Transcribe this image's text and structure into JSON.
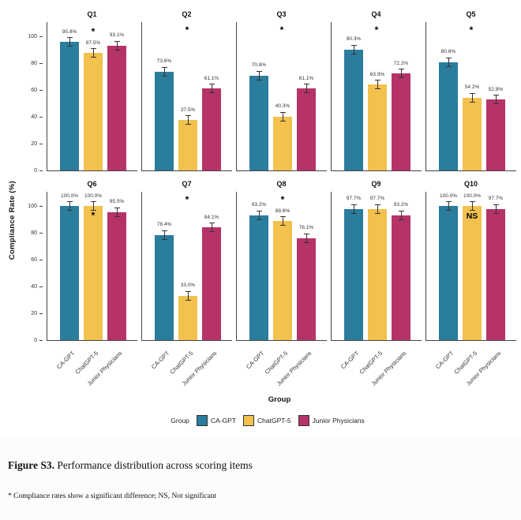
{
  "figure": {
    "caption_bold": "Figure S3.",
    "caption_rest": " Performance distribution across scoring items",
    "footnote": "* Compliance rates show a significant difference; NS, Not significant"
  },
  "chart_data": {
    "type": "bar",
    "title": "",
    "ylabel": "Compliance Rate (%)",
    "xlabel": "Group",
    "ylim": [
      0,
      100
    ],
    "yticks": [
      0,
      20,
      40,
      60,
      80,
      100
    ],
    "grid": false,
    "error_bars": true,
    "legend_title": "Group",
    "legend_position": "bottom",
    "categories": [
      "CA-GPT",
      "ChatGPT-5",
      "Junior Physicians"
    ],
    "series_colors": [
      "#2a7d9c",
      "#f2c14e",
      "#b63368"
    ],
    "facets": [
      {
        "label": "Q1",
        "values": [
          95.8,
          87.5,
          93.1
        ],
        "marker": "*",
        "marker_pos": 1
      },
      {
        "label": "Q2",
        "values": [
          73.6,
          37.5,
          61.1
        ],
        "marker": "*",
        "marker_pos": "center"
      },
      {
        "label": "Q3",
        "values": [
          70.8,
          40.3,
          61.1
        ],
        "marker": "*",
        "marker_pos": "center"
      },
      {
        "label": "Q4",
        "values": [
          90.3,
          63.9,
          72.2
        ],
        "marker": "*",
        "marker_pos": "center"
      },
      {
        "label": "Q5",
        "values": [
          80.6,
          54.2,
          52.8
        ],
        "marker": "*",
        "marker_pos": "center"
      },
      {
        "label": "Q6",
        "values": [
          100.0,
          100.0,
          95.5
        ],
        "marker": "*",
        "marker_pos": 1
      },
      {
        "label": "Q7",
        "values": [
          78.4,
          33.0,
          84.1
        ],
        "marker": "*",
        "marker_pos": "center"
      },
      {
        "label": "Q8",
        "values": [
          93.2,
          88.6,
          76.1
        ],
        "marker": "*",
        "marker_pos": 1
      },
      {
        "label": "Q9",
        "values": [
          97.7,
          97.7,
          93.2
        ],
        "marker": "",
        "marker_pos": null
      },
      {
        "label": "Q10",
        "values": [
          100.0,
          100.0,
          97.7
        ],
        "marker": "NS",
        "marker_pos": 1
      }
    ]
  }
}
